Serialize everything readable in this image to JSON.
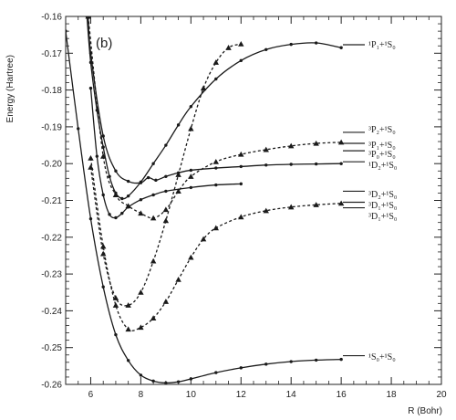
{
  "chart_data": {
    "type": "line",
    "panel_label": "(b)",
    "xlabel": "R (Bohr)",
    "ylabel": "Energy (Hartree)",
    "xlim": [
      5,
      20
    ],
    "ylim": [
      -0.26,
      -0.16
    ],
    "xticks": [
      6,
      8,
      10,
      12,
      14,
      16,
      18,
      20
    ],
    "yticks": [
      -0.16,
      -0.17,
      -0.18,
      -0.19,
      -0.2,
      -0.21,
      -0.22,
      -0.23,
      -0.24,
      -0.25,
      -0.26
    ],
    "asymptotes": [
      {
        "label": "¹P₁+¹S₀",
        "y": -0.1677
      },
      {
        "label": "³P₂+¹S₀",
        "y": -0.1915
      },
      {
        "label": "³P₁+¹S₀",
        "y": -0.1945
      },
      {
        "label": "³P₀+¹S₀",
        "y": -0.1965
      },
      {
        "label": "¹D₂+¹S₀",
        "y": -0.1995
      },
      {
        "label": "³D₂+¹S₀",
        "y": -0.2075
      },
      {
        "label": "³D₁+¹S₀",
        "y": -0.2105
      },
      {
        "label": "³D₁+¹S₀",
        "y": -0.212
      },
      {
        "label": "¹S₀+¹S₀",
        "y": -0.2522
      }
    ],
    "series": [
      {
        "style": "solid",
        "marker": "dot",
        "x": [
          5.85,
          6.0,
          6.25,
          6.5,
          6.75,
          7.0,
          7.25,
          7.5,
          8.0,
          8.5,
          9.0,
          9.5,
          10.0,
          11.0,
          12.0,
          13.0,
          14.0,
          15.0,
          16.0
        ],
        "y": [
          -0.16,
          -0.1725,
          -0.1855,
          -0.1955,
          -0.2035,
          -0.208,
          -0.2095,
          -0.2088,
          -0.205,
          -0.2,
          -0.195,
          -0.1895,
          -0.1845,
          -0.177,
          -0.172,
          -0.169,
          -0.1676,
          -0.1672,
          -0.1685
        ]
      },
      {
        "style": "solid",
        "marker": "dot",
        "x": [
          5.9,
          6.0,
          6.5,
          7.0,
          7.5,
          8.0,
          8.3,
          8.6,
          9.0,
          9.5,
          10.0,
          11.0,
          12.0,
          13.0,
          14.0,
          15.0,
          16.0
        ],
        "y": [
          -0.16,
          -0.17,
          -0.1925,
          -0.202,
          -0.2048,
          -0.2052,
          -0.2038,
          -0.2045,
          -0.2035,
          -0.2025,
          -0.2018,
          -0.2012,
          -0.2008,
          -0.2004,
          -0.2002,
          -0.2001,
          -0.2
        ]
      },
      {
        "style": "solid",
        "marker": "dot",
        "x": [
          6.0,
          6.25,
          6.5,
          6.75,
          7.0,
          7.25,
          7.5,
          8.0,
          8.5,
          9.0,
          10.0,
          11.0,
          12.0
        ],
        "y": [
          -0.1795,
          -0.198,
          -0.2085,
          -0.2138,
          -0.2147,
          -0.2135,
          -0.2118,
          -0.2098,
          -0.2085,
          -0.2075,
          -0.2065,
          -0.2058,
          -0.2055
        ]
      },
      {
        "style": "solid",
        "marker": "dot",
        "x": [
          5.0,
          5.5,
          6.0,
          6.5,
          7.0,
          7.5,
          8.0,
          8.5,
          9.0,
          9.5,
          10.0,
          11.0,
          12.0,
          13.0,
          14.0,
          15.0,
          16.0
        ],
        "y": [
          -0.164,
          -0.1905,
          -0.215,
          -0.2335,
          -0.2465,
          -0.2535,
          -0.2575,
          -0.2591,
          -0.2596,
          -0.2593,
          -0.2585,
          -0.2568,
          -0.2555,
          -0.2545,
          -0.2538,
          -0.2534,
          -0.2532
        ]
      },
      {
        "style": "dashed",
        "marker": "triangle",
        "x": [
          6.0,
          6.5,
          7.0,
          7.5,
          8.0,
          8.5,
          9.0,
          9.5,
          10.0,
          10.5,
          11.0,
          11.5,
          12.0
        ],
        "y": [
          -0.201,
          -0.2245,
          -0.2365,
          -0.2385,
          -0.235,
          -0.2265,
          -0.2155,
          -0.203,
          -0.1905,
          -0.1795,
          -0.1725,
          -0.1685,
          -0.1675
        ]
      },
      {
        "style": "dashed",
        "marker": "triangle",
        "x": [
          5.9,
          6.5,
          7.0,
          7.5,
          8.0,
          8.5,
          9.0,
          9.5,
          10.0,
          11.0,
          12.0,
          13.0,
          14.0,
          15.0,
          16.0
        ],
        "y": [
          -0.16,
          -0.198,
          -0.2085,
          -0.2115,
          -0.2135,
          -0.2148,
          -0.2125,
          -0.2075,
          -0.2035,
          -0.1995,
          -0.1975,
          -0.1962,
          -0.1952,
          -0.1945,
          -0.1942
        ]
      },
      {
        "style": "dashed",
        "marker": "triangle",
        "x": [
          6.0,
          6.5,
          7.0,
          7.5,
          8.0,
          8.5,
          9.0,
          9.5,
          10.0,
          10.5,
          11.0,
          12.0,
          13.0,
          14.0,
          15.0,
          16.0
        ],
        "y": [
          -0.1985,
          -0.2225,
          -0.2385,
          -0.245,
          -0.2445,
          -0.242,
          -0.2375,
          -0.2315,
          -0.2255,
          -0.2205,
          -0.2175,
          -0.2145,
          -0.2128,
          -0.2118,
          -0.2112,
          -0.2108
        ]
      }
    ]
  }
}
